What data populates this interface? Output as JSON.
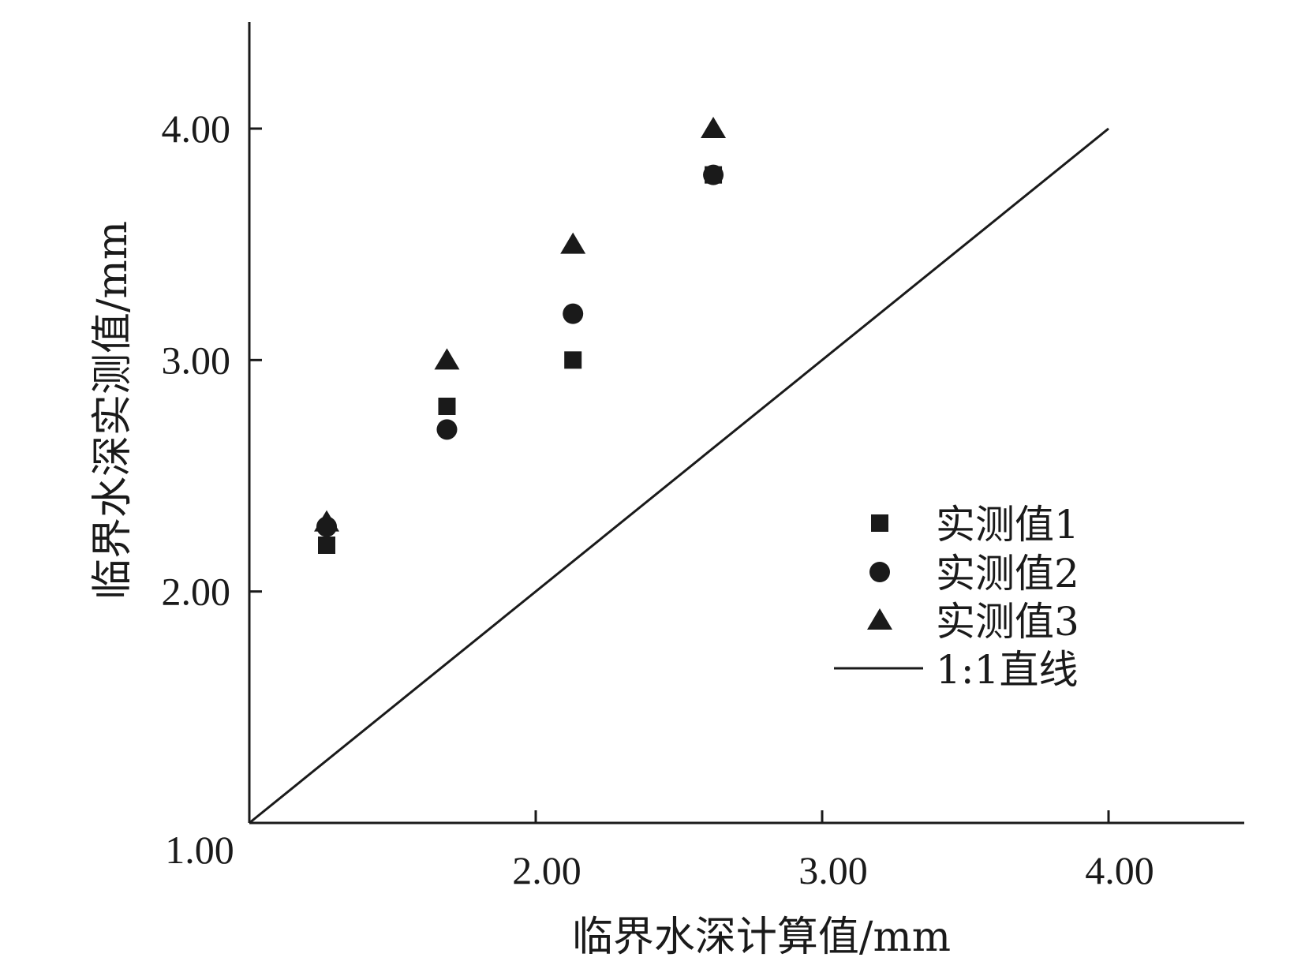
{
  "chart_data": {
    "type": "scatter",
    "xlabel": "临界水深计算值/mm",
    "ylabel": "临界水深实测值/mm",
    "xlim": [
      1.0,
      4.47
    ],
    "ylim": [
      1.0,
      4.47
    ],
    "x_ticks": [
      {
        "value": 2.0,
        "label": "2.00"
      },
      {
        "value": 3.0,
        "label": "3.00"
      },
      {
        "value": 4.0,
        "label": "4.00"
      }
    ],
    "y_ticks": [
      {
        "value": 2.0,
        "label": "2.00"
      },
      {
        "value": 3.0,
        "label": "3.00"
      },
      {
        "value": 4.0,
        "label": "4.00"
      }
    ],
    "origin_label": "1.00",
    "grid": false,
    "legend_position": "bottom-right",
    "series": [
      {
        "name": "实测值1",
        "marker": "square",
        "color": "#1a1a1a",
        "points": [
          {
            "x": 1.27,
            "y": 2.2
          },
          {
            "x": 1.69,
            "y": 2.8
          },
          {
            "x": 2.13,
            "y": 3.0
          },
          {
            "x": 2.62,
            "y": 3.8
          }
        ]
      },
      {
        "name": "实测值2",
        "marker": "circle",
        "color": "#1a1a1a",
        "points": [
          {
            "x": 1.27,
            "y": 2.28
          },
          {
            "x": 1.69,
            "y": 2.7
          },
          {
            "x": 2.13,
            "y": 3.2
          },
          {
            "x": 2.62,
            "y": 3.8
          }
        ]
      },
      {
        "name": "实测值3",
        "marker": "triangle",
        "color": "#1a1a1a",
        "points": [
          {
            "x": 1.27,
            "y": 2.3
          },
          {
            "x": 1.69,
            "y": 3.0
          },
          {
            "x": 2.13,
            "y": 3.5
          },
          {
            "x": 2.62,
            "y": 4.0
          }
        ]
      }
    ],
    "reference_line": {
      "name": "1:1直线",
      "from": [
        1.0,
        1.0
      ],
      "to": [
        4.0,
        4.0
      ],
      "color": "#1a1a1a"
    }
  }
}
